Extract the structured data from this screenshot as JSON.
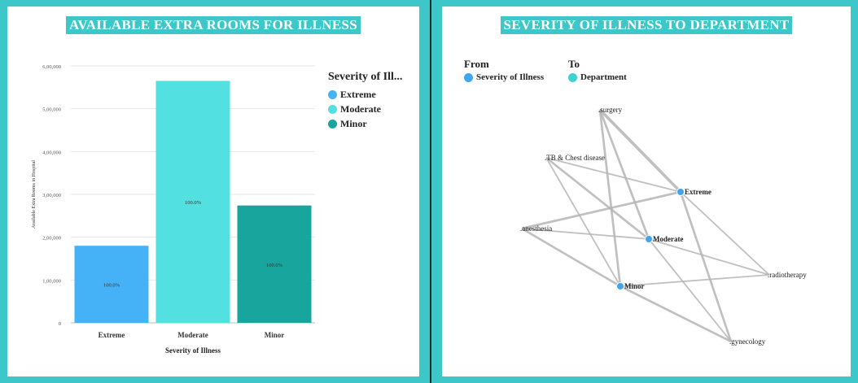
{
  "left_panel": {
    "title": "AVAILABLE EXTRA ROOMS FOR ILLNESS"
  },
  "right_panel": {
    "title": "SEVERITY OF ILLNESS TO DEPARTMENT"
  },
  "chart_data": [
    {
      "type": "bar",
      "title": "AVAILABLE EXTRA ROOMS FOR ILLNESS",
      "categories": [
        "Extreme",
        "Moderate",
        "Minor"
      ],
      "values": [
        180000,
        565000,
        274000
      ],
      "data_labels": [
        "100.0%",
        "100.0%",
        "100.0%"
      ],
      "colors": [
        "#45b1f7",
        "#52e0e0",
        "#17a59d"
      ],
      "xlabel": "Severity of Illness",
      "ylabel": "Available Extra Rooms in Hospital",
      "ylim": [
        0,
        600000
      ],
      "yticks": [
        0,
        100000,
        200000,
        300000,
        400000,
        500000,
        600000
      ],
      "ytick_labels": [
        "0",
        "1,00,000",
        "2,00,000",
        "3,00,000",
        "4,00,000",
        "5,00,000",
        "6,00,000"
      ],
      "grid": true,
      "legend": {
        "title": "Severity of Ill...",
        "placement": "right",
        "entries": [
          {
            "label": "Extreme",
            "color": "#45b1f7"
          },
          {
            "label": "Moderate",
            "color": "#52e0e0"
          },
          {
            "label": "Minor",
            "color": "#17a59d"
          }
        ]
      }
    },
    {
      "type": "network",
      "title": "SEVERITY OF ILLNESS TO DEPARTMENT",
      "legend": {
        "from_header": "From",
        "to_header": "To",
        "from_label": "Severity of Illness",
        "to_label": "Department",
        "from_color": "#3fa6ee",
        "to_color": "#3ed1d4"
      },
      "source_nodes": [
        "Extreme",
        "Moderate",
        "Minor"
      ],
      "target_nodes": [
        ".surgery",
        ".TB & Chest disease",
        ".anesthesia",
        ".radiotherapy",
        ".gynecology"
      ],
      "edges": [
        {
          "from": "Extreme",
          "to": ".surgery",
          "weight": 4
        },
        {
          "from": "Extreme",
          "to": ".TB & Chest disease",
          "weight": 2
        },
        {
          "from": "Extreme",
          "to": ".anesthesia",
          "weight": 3
        },
        {
          "from": "Extreme",
          "to": ".radiotherapy",
          "weight": 2
        },
        {
          "from": "Extreme",
          "to": ".gynecology",
          "weight": 3
        },
        {
          "from": "Moderate",
          "to": ".surgery",
          "weight": 3
        },
        {
          "from": "Moderate",
          "to": ".TB & Chest disease",
          "weight": 3
        },
        {
          "from": "Moderate",
          "to": ".anesthesia",
          "weight": 2
        },
        {
          "from": "Moderate",
          "to": ".radiotherapy",
          "weight": 2
        },
        {
          "from": "Moderate",
          "to": ".gynecology",
          "weight": 2
        },
        {
          "from": "Minor",
          "to": ".surgery",
          "weight": 3
        },
        {
          "from": "Minor",
          "to": ".TB & Chest disease",
          "weight": 2
        },
        {
          "from": "Minor",
          "to": ".anesthesia",
          "weight": 3
        },
        {
          "from": "Minor",
          "to": ".radiotherapy",
          "weight": 2
        },
        {
          "from": "Minor",
          "to": ".gynecology",
          "weight": 3
        }
      ]
    }
  ]
}
